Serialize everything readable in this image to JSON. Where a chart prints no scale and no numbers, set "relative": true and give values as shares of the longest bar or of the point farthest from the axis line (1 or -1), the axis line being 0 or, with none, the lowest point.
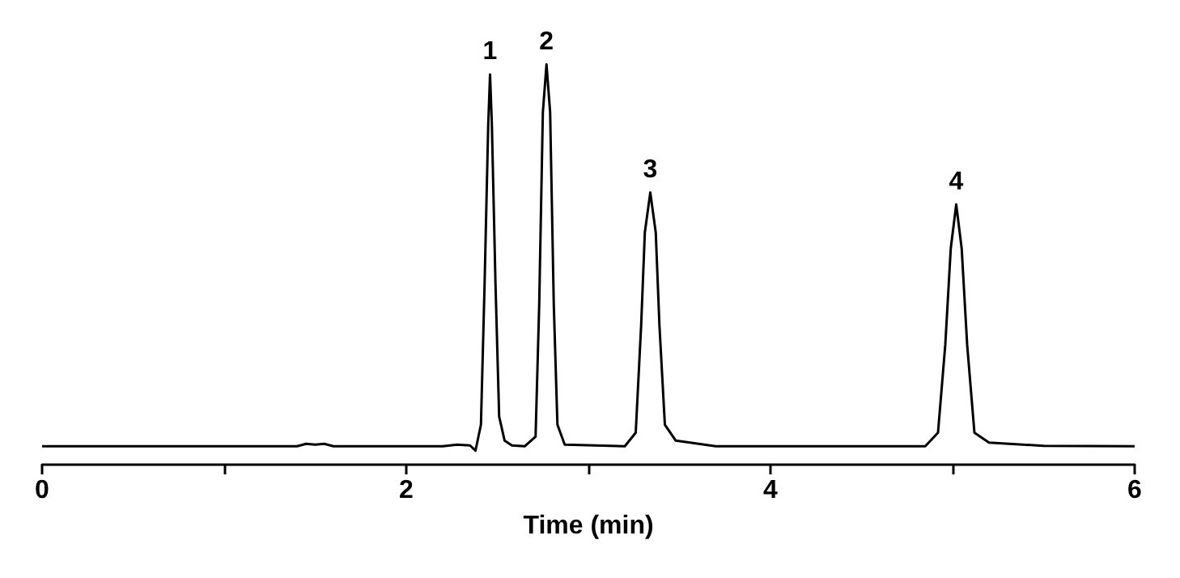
{
  "chart_data": {
    "type": "line",
    "relative": true,
    "xlabel": "Time (min)",
    "xlim": [
      0,
      6
    ],
    "xticks": [
      0,
      {
        "value": 1,
        "label": null
      },
      2,
      {
        "value": 3,
        "label": null
      },
      4,
      {
        "value": 5,
        "label": null
      },
      6
    ],
    "grid": false,
    "marker": "none",
    "line_style": "solid",
    "series": [
      {
        "color": "#000000",
        "x": [
          0,
          1.4,
          1.45,
          1.5,
          1.55,
          1.6,
          2.2,
          2.28,
          2.35,
          2.38,
          2.41,
          2.43,
          2.45,
          2.46,
          2.47,
          2.49,
          2.51,
          2.54,
          2.58,
          2.65,
          2.71,
          2.73,
          2.75,
          2.77,
          2.79,
          2.81,
          2.83,
          2.87,
          3.2,
          3.26,
          3.29,
          3.31,
          3.34,
          3.37,
          3.39,
          3.42,
          3.48,
          3.7,
          4.85,
          4.92,
          4.96,
          4.99,
          5.02,
          5.05,
          5.08,
          5.12,
          5.2,
          5.5,
          6
        ],
        "values": [
          0.046,
          0.046,
          0.052,
          0.05,
          0.052,
          0.046,
          0.046,
          0.05,
          0.048,
          0.035,
          0.1,
          0.45,
          0.85,
          0.975,
          0.85,
          0.45,
          0.12,
          0.06,
          0.048,
          0.046,
          0.07,
          0.4,
          0.88,
          1,
          0.88,
          0.4,
          0.1,
          0.05,
          0.046,
          0.08,
          0.35,
          0.58,
          0.68,
          0.58,
          0.35,
          0.1,
          0.06,
          0.046,
          0.046,
          0.08,
          0.3,
          0.54,
          0.65,
          0.54,
          0.3,
          0.08,
          0.055,
          0.047,
          0.046
        ]
      }
    ],
    "annotations": [
      {
        "text": "1",
        "x": 2.46,
        "y": 0.975
      },
      {
        "text": "2",
        "x": 2.77,
        "y": 1
      },
      {
        "text": "3",
        "x": 3.34,
        "y": 0.68
      },
      {
        "text": "4",
        "x": 5.02,
        "y": 0.65
      }
    ]
  }
}
